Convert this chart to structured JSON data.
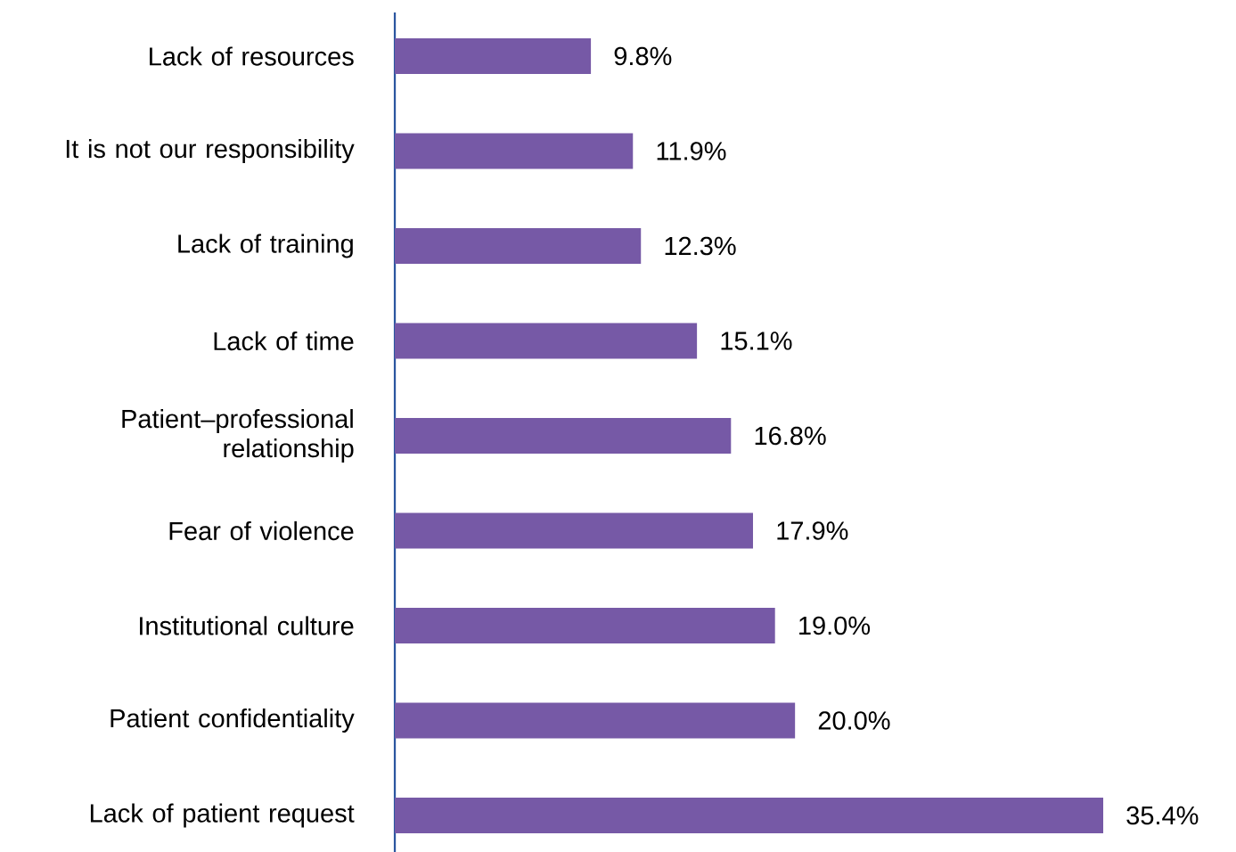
{
  "chart_data": {
    "type": "bar",
    "orientation": "horizontal",
    "categories": [
      "Lack of resources",
      "It is not our responsibility",
      "Lack of training",
      "Lack of time",
      "Patient–professional relationship",
      "Fear of violence",
      "Institutional culture",
      "Patient confidentiality",
      "Lack of patient request"
    ],
    "values": [
      9.8,
      11.9,
      12.3,
      15.1,
      16.8,
      17.9,
      19.0,
      20.0,
      35.4
    ],
    "value_labels": [
      "9.8%",
      "11.9%",
      "12.3%",
      "15.1%",
      "16.8%",
      "17.9%",
      "19.0%",
      "20.0%",
      "35.4%"
    ],
    "color": "#7659a6",
    "tick_labels": "y"
  }
}
